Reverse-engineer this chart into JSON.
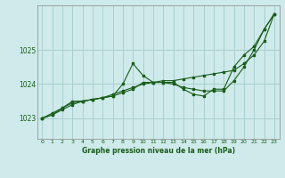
{
  "title": "Graphe pression niveau de la mer (hPa)",
  "background_color": "#ceeaea",
  "grid_color": "#aacfcf",
  "line_color": "#1a5c1a",
  "xlim": [
    -0.5,
    23.5
  ],
  "ylim": [
    1022.4,
    1026.3
  ],
  "yticks": [
    1023,
    1024,
    1025
  ],
  "xticks": [
    0,
    1,
    2,
    3,
    4,
    5,
    6,
    7,
    8,
    9,
    10,
    11,
    12,
    13,
    14,
    15,
    16,
    17,
    18,
    19,
    20,
    21,
    22,
    23
  ],
  "series1": [
    [
      0,
      1023.0
    ],
    [
      1,
      1023.1
    ],
    [
      2,
      1023.3
    ],
    [
      3,
      1023.5
    ],
    [
      4,
      1023.5
    ],
    [
      5,
      1023.55
    ],
    [
      6,
      1023.6
    ],
    [
      7,
      1023.65
    ],
    [
      8,
      1024.0
    ],
    [
      9,
      1024.6
    ],
    [
      10,
      1024.25
    ],
    [
      11,
      1024.05
    ],
    [
      12,
      1024.05
    ],
    [
      13,
      1024.05
    ],
    [
      14,
      1023.85
    ],
    [
      15,
      1023.7
    ],
    [
      16,
      1023.65
    ],
    [
      17,
      1023.85
    ],
    [
      18,
      1023.85
    ],
    [
      19,
      1024.5
    ],
    [
      20,
      1024.85
    ],
    [
      21,
      1025.1
    ],
    [
      22,
      1025.6
    ],
    [
      23,
      1026.05
    ]
  ],
  "series2": [
    [
      0,
      1023.0
    ],
    [
      1,
      1023.15
    ],
    [
      2,
      1023.3
    ],
    [
      3,
      1023.45
    ],
    [
      4,
      1023.5
    ],
    [
      5,
      1023.55
    ],
    [
      6,
      1023.6
    ],
    [
      7,
      1023.7
    ],
    [
      8,
      1023.8
    ],
    [
      9,
      1023.9
    ],
    [
      10,
      1024.0
    ],
    [
      11,
      1024.05
    ],
    [
      12,
      1024.1
    ],
    [
      13,
      1024.1
    ],
    [
      14,
      1024.15
    ],
    [
      15,
      1024.2
    ],
    [
      16,
      1024.25
    ],
    [
      17,
      1024.3
    ],
    [
      18,
      1024.35
    ],
    [
      19,
      1024.4
    ],
    [
      20,
      1024.6
    ],
    [
      21,
      1024.85
    ],
    [
      22,
      1025.25
    ],
    [
      23,
      1026.05
    ]
  ],
  "series3": [
    [
      0,
      1023.0
    ],
    [
      1,
      1023.1
    ],
    [
      2,
      1023.25
    ],
    [
      3,
      1023.4
    ],
    [
      4,
      1023.5
    ],
    [
      5,
      1023.55
    ],
    [
      6,
      1023.6
    ],
    [
      7,
      1023.65
    ],
    [
      8,
      1023.75
    ],
    [
      9,
      1023.85
    ],
    [
      10,
      1024.05
    ],
    [
      11,
      1024.05
    ],
    [
      12,
      1024.05
    ],
    [
      13,
      1024.0
    ],
    [
      14,
      1023.9
    ],
    [
      15,
      1023.85
    ],
    [
      16,
      1023.8
    ],
    [
      17,
      1023.8
    ],
    [
      18,
      1023.8
    ],
    [
      19,
      1024.1
    ],
    [
      20,
      1024.5
    ],
    [
      21,
      1025.0
    ],
    [
      22,
      1025.6
    ],
    [
      23,
      1026.05
    ]
  ]
}
